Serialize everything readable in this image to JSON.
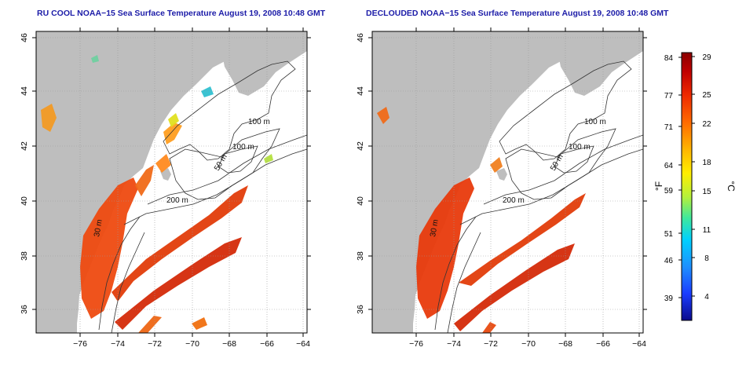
{
  "panels": [
    {
      "title": "RU COOL NOAA−15 Sea Surface Temperature August 19, 2008 10:48 GMT",
      "x_ticks": [
        "−76",
        "−74",
        "−72",
        "−70",
        "−68",
        "−66",
        "−64"
      ],
      "y_ticks": [
        "36",
        "38",
        "40",
        "42",
        "44",
        "46"
      ],
      "contour_labels": [
        "100 m",
        "100 m",
        "50 m",
        "200 m",
        "30 m"
      ]
    },
    {
      "title": "DECLOUDED NOAA−15 Sea Surface Temperature August 19, 2008 10:48 GMT",
      "x_ticks": [
        "−76",
        "−74",
        "−72",
        "−70",
        "−68",
        "−66",
        "−64"
      ],
      "y_ticks": [
        "36",
        "38",
        "40",
        "42",
        "44",
        "46"
      ],
      "contour_labels": [
        "100 m",
        "100 m",
        "50 m",
        "200 m",
        "30 m"
      ]
    }
  ],
  "colorbar": {
    "f_label": "°F",
    "c_label": "°C",
    "f_ticks": [
      "84",
      "77",
      "71",
      "64",
      "59",
      "51",
      "46",
      "39"
    ],
    "c_ticks": [
      "29",
      "25",
      "22",
      "18",
      "15",
      "11",
      "8",
      "4"
    ],
    "colors": [
      "#0b0b8c",
      "#1a3cff",
      "#1e90ff",
      "#00d0ff",
      "#3ce8a0",
      "#b4f03c",
      "#ffee00",
      "#ffb400",
      "#ff6a00",
      "#ee2a00",
      "#c00000",
      "#8a0000"
    ]
  },
  "map_colors": {
    "land": "#bebebe",
    "water": "#ffffff",
    "contour": "#333333"
  }
}
